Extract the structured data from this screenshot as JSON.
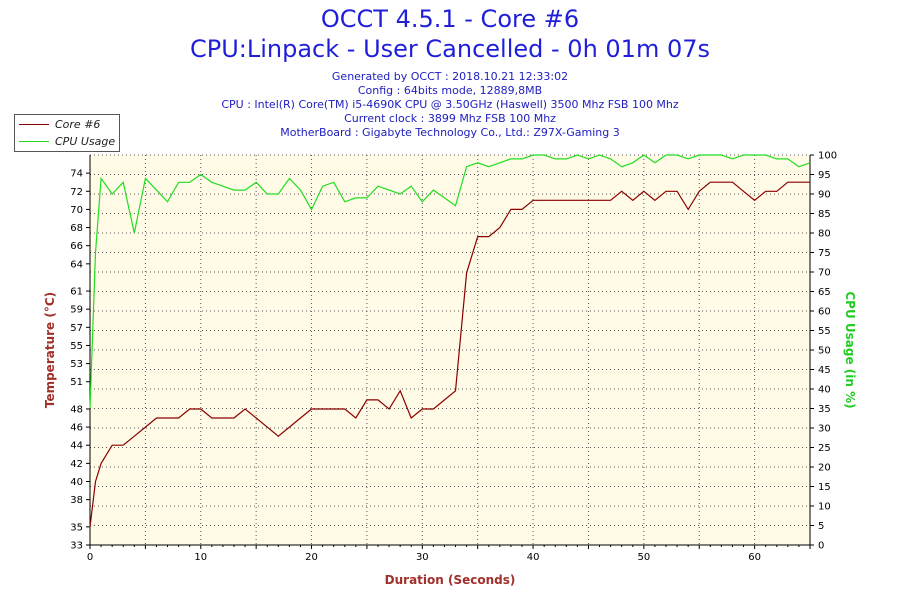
{
  "header": {
    "title": "OCCT 4.5.1 - Core #6",
    "subtitle": "CPU:Linpack - User Cancelled - 0h 01m 07s",
    "info": [
      "Generated by OCCT : 2018.10.21 12:33:02",
      "Config : 64bits mode, 12889,8MB",
      "CPU : Intel(R) Core(TM) i5-4690K CPU @ 3.50GHz (Haswell) 3500 Mhz FSB 100 Mhz",
      "Current clock : 3899 Mhz FSB 100 Mhz",
      "MotherBoard : Gigabyte Technology Co., Ltd.: Z97X-Gaming 3"
    ]
  },
  "colors": {
    "temperature": "#8b0000",
    "cpu": "#22dd22",
    "title": "#1f1fd9",
    "plot_bg": "#fffbe6"
  },
  "chart_data": {
    "type": "line",
    "xlabel": "Duration (Seconds)",
    "ylabel_left": "Temperature (°C)",
    "ylabel_right": "CPU Usage (in %)",
    "xlim": [
      0,
      65
    ],
    "xticks": [
      0,
      10,
      20,
      30,
      40,
      50,
      60
    ],
    "ylim_left": [
      33,
      76
    ],
    "yticks_left": [
      33,
      35,
      38,
      40,
      42,
      44,
      46,
      48,
      51,
      53,
      55,
      57,
      59,
      61,
      64,
      66,
      68,
      70,
      72,
      74
    ],
    "ylim_right": [
      0,
      100
    ],
    "yticks_right": [
      0,
      5,
      10,
      15,
      20,
      25,
      30,
      35,
      40,
      45,
      50,
      55,
      60,
      65,
      70,
      75,
      80,
      85,
      90,
      95,
      100
    ],
    "grid": true,
    "legend_position": "top-left",
    "series": [
      {
        "name": "Core #6",
        "axis": "left",
        "x": [
          0,
          0.5,
          1,
          2,
          3,
          4,
          5,
          6,
          7,
          8,
          9,
          10,
          11,
          12,
          13,
          14,
          15,
          16,
          17,
          18,
          19,
          20,
          21,
          22,
          23,
          24,
          25,
          26,
          27,
          28,
          29,
          30,
          31,
          32,
          33,
          34,
          35,
          36,
          37,
          38,
          39,
          40,
          41,
          42,
          43,
          44,
          45,
          46,
          47,
          48,
          49,
          50,
          51,
          52,
          53,
          54,
          55,
          56,
          57,
          58,
          59,
          60,
          61,
          62,
          63,
          64,
          65
        ],
        "values": [
          35,
          40,
          42,
          44,
          44,
          45,
          46,
          47,
          47,
          47,
          48,
          48,
          47,
          47,
          47,
          48,
          47,
          46,
          45,
          46,
          47,
          48,
          48,
          48,
          48,
          47,
          49,
          49,
          48,
          50,
          47,
          48,
          48,
          49,
          50,
          63,
          67,
          67,
          68,
          70,
          70,
          71,
          71,
          71,
          71,
          71,
          71,
          71,
          71,
          72,
          71,
          72,
          71,
          72,
          72,
          70,
          72,
          73,
          73,
          73,
          72,
          71,
          72,
          72,
          73,
          73,
          73
        ]
      },
      {
        "name": "CPU Usage",
        "axis": "right",
        "x": [
          0,
          0.5,
          1,
          2,
          3,
          4,
          5,
          6,
          7,
          8,
          9,
          10,
          11,
          12,
          13,
          14,
          15,
          16,
          17,
          18,
          19,
          20,
          21,
          22,
          23,
          24,
          25,
          26,
          27,
          28,
          29,
          30,
          31,
          32,
          33,
          34,
          35,
          36,
          37,
          38,
          39,
          40,
          41,
          42,
          43,
          44,
          45,
          46,
          47,
          48,
          49,
          50,
          51,
          52,
          53,
          54,
          55,
          56,
          57,
          58,
          59,
          60,
          61,
          62,
          63,
          64,
          65
        ],
        "values": [
          35,
          75,
          94,
          90,
          93,
          80,
          94,
          91,
          88,
          93,
          93,
          95,
          93,
          92,
          91,
          91,
          93,
          90,
          90,
          94,
          91,
          86,
          92,
          93,
          88,
          89,
          89,
          92,
          91,
          90,
          92,
          88,
          91,
          89,
          87,
          97,
          98,
          97,
          98,
          99,
          99,
          100,
          100,
          99,
          99,
          100,
          99,
          100,
          99,
          97,
          98,
          100,
          98,
          100,
          100,
          99,
          100,
          100,
          100,
          99,
          100,
          100,
          100,
          99,
          99,
          97,
          98
        ]
      }
    ]
  }
}
